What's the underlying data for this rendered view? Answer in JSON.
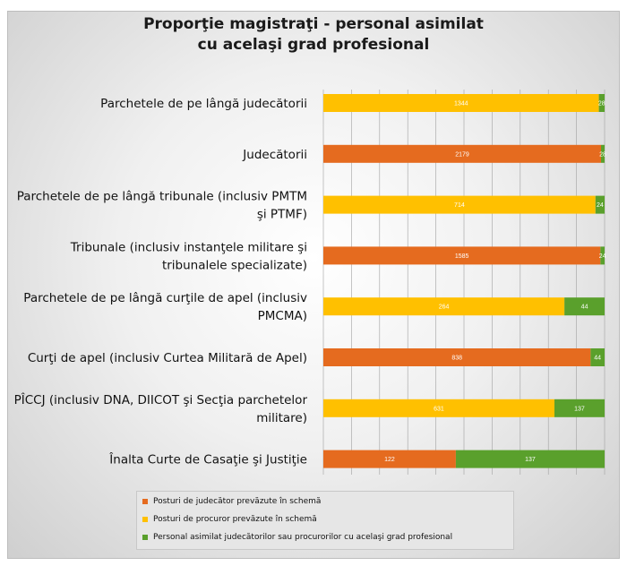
{
  "title_line1": "Proporţie magistraţi - personal asimilat",
  "title_line2": "cu acelaşi grad profesional",
  "colors": {
    "judges": "#E56B1F",
    "prosecutors": "#FFC000",
    "assimilated": "#5AA02C",
    "gridline": "#a0a0a0"
  },
  "chart_data": {
    "type": "bar",
    "orientation": "horizontal",
    "stacked": "percent",
    "categories": [
      [
        "Parchetele de pe lângă judecătorii"
      ],
      [
        "Judecătorii"
      ],
      [
        "Parchetele de pe lângă  tribunale (inclusiv PMTM",
        "şi PTMF)"
      ],
      [
        "Tribunale (inclusiv instanţele militare şi",
        "tribunalele specializate)"
      ],
      [
        "Parchetele de pe lângă curţile de apel (inclusiv",
        "PMCMA)"
      ],
      [
        "Curţi de apel (inclusiv Curtea Militară de Apel)"
      ],
      [
        "PÎCCJ (inclusiv DNA, DIICOT şi Secţia parchetelor",
        "militare)"
      ],
      [
        "Înalta Curte de Casaţie şi Justiţie"
      ]
    ],
    "bars": [
      {
        "main": 1344,
        "main_type": "prosecutors",
        "assimilated": 28
      },
      {
        "main": 2179,
        "main_type": "judges",
        "assimilated": 28
      },
      {
        "main": 714,
        "main_type": "prosecutors",
        "assimilated": 24
      },
      {
        "main": 1585,
        "main_type": "judges",
        "assimilated": 24
      },
      {
        "main": 264,
        "main_type": "prosecutors",
        "assimilated": 44
      },
      {
        "main": 838,
        "main_type": "judges",
        "assimilated": 44
      },
      {
        "main": 631,
        "main_type": "prosecutors",
        "assimilated": 137
      },
      {
        "main": 122,
        "main_type": "judges",
        "assimilated": 137
      }
    ],
    "legend": [
      {
        "key": "judges",
        "label": "Posturi de judecător prevăzute în  schemă"
      },
      {
        "key": "prosecutors",
        "label": "Posturi de procuror prevăzute în  schemă"
      },
      {
        "key": "assimilated",
        "label": "Personal asimilat judecătorilor sau procurorilor cu acelaşi grad profesional"
      }
    ],
    "legend_position": "bottom",
    "grid": true,
    "xlim": [
      0,
      100
    ]
  }
}
